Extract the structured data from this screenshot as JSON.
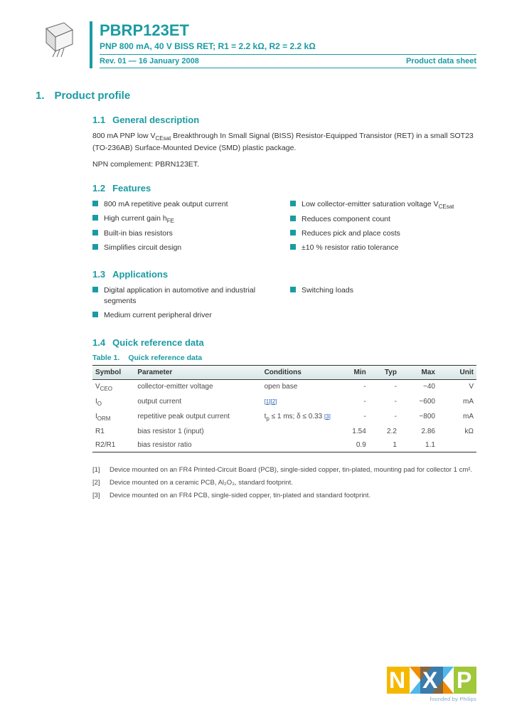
{
  "header": {
    "part_number": "PBRP123ET",
    "subtitle": "PNP 800 mA, 40 V BISS RET; R1 = 2.2 kΩ, R2 = 2.2 kΩ",
    "revision": "Rev. 01 — 16 January 2008",
    "doc_type": "Product data sheet"
  },
  "section1": {
    "num": "1.",
    "title": "Product profile"
  },
  "s11": {
    "num": "1.1",
    "title": "General description",
    "para1_a": "800 mA PNP low V",
    "para1_sub": "CEsat",
    "para1_b": " Breakthrough In Small Signal (BISS) Resistor-Equipped Transistor (RET) in a small SOT23 (TO-236AB) Surface-Mounted Device (SMD) plastic package.",
    "para2": "NPN complement: PBRN123ET."
  },
  "s12": {
    "num": "1.2",
    "title": "Features",
    "left": [
      "800 mA repetitive peak output current",
      "High current gain h",
      "Built-in bias resistors",
      "Simplifies circuit design"
    ],
    "left_hfe_sub": "FE",
    "right": [
      "Low collector-emitter saturation voltage V",
      "Reduces component count",
      "Reduces pick and place costs",
      "±10 % resistor ratio tolerance"
    ],
    "right_vcesat_sub": "CEsat"
  },
  "s13": {
    "num": "1.3",
    "title": "Applications",
    "left": [
      "Digital application in automotive and industrial segments",
      "Medium current peripheral driver"
    ],
    "right": [
      "Switching loads"
    ]
  },
  "s14": {
    "num": "1.4",
    "title": "Quick reference data",
    "table_label": "Table 1.",
    "table_title": "Quick reference data",
    "head": [
      "Symbol",
      "Parameter",
      "Conditions",
      "Min",
      "Typ",
      "Max",
      "Unit"
    ],
    "rows": [
      {
        "sym_main": "V",
        "sym_sub": "CEO",
        "param": "collector-emitter voltage",
        "cond": "open base",
        "ref": "",
        "min": "-",
        "typ": "-",
        "max": "−40",
        "unit": "V"
      },
      {
        "sym_main": "I",
        "sym_sub": "O",
        "param": "output current",
        "cond": "",
        "ref": "[1][2]",
        "min": "-",
        "typ": "-",
        "max": "−600",
        "unit": "mA"
      },
      {
        "sym_main": "I",
        "sym_sub": "ORM",
        "param": "repetitive peak output current",
        "cond": "t",
        "cond_sub": "p",
        "cond2": " ≤ 1 ms; δ ≤ 0.33",
        "ref": "[3]",
        "min": "-",
        "typ": "-",
        "max": "−800",
        "unit": "mA"
      },
      {
        "sym_main": "R1",
        "sym_sub": "",
        "param": "bias resistor 1 (input)",
        "cond": "",
        "ref": "",
        "min": "1.54",
        "typ": "2.2",
        "max": "2.86",
        "unit": "kΩ"
      },
      {
        "sym_main": "R2/R1",
        "sym_sub": "",
        "param": "bias resistor ratio",
        "cond": "",
        "ref": "",
        "min": "0.9",
        "typ": "1",
        "max": "1.1",
        "unit": ""
      }
    ],
    "footnotes": [
      "Device mounted on an FR4 Printed-Circuit Board (PCB), single-sided copper, tin-plated, mounting pad for collector 1 cm².",
      "Device mounted on a ceramic PCB, Al₂O₃, standard footprint.",
      "Device mounted on an FR4 PCB, single-sided copper, tin-plated and standard footprint."
    ],
    "fn_nums": [
      "[1]",
      "[2]",
      "[3]"
    ]
  },
  "logo_tagline": "founded by Philips",
  "colors": {
    "teal": "#1a9ba3",
    "nxp_blue": "#7fa8c9",
    "nxp_yellow": "#f5b800",
    "nxp_green": "#a0c83a",
    "nxp_lightblue": "#4fb8e8",
    "nxp_orange": "#f28c00"
  }
}
